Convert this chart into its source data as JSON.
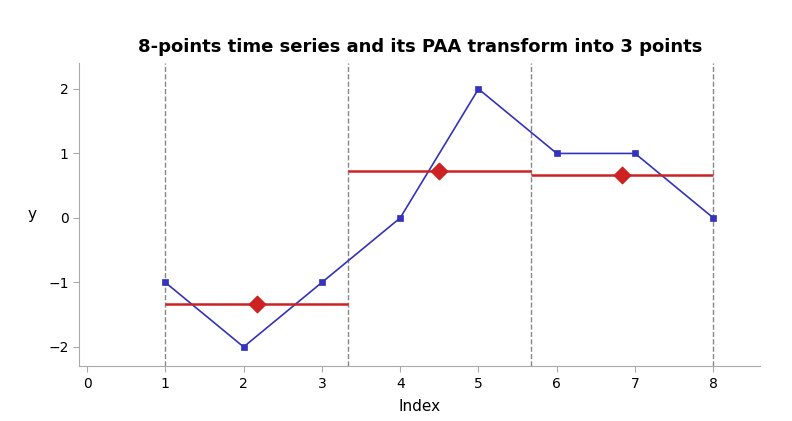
{
  "title": "8-points time series and its PAA transform into 3 points",
  "xlabel": "Index",
  "ylabel": "y",
  "ts_x": [
    1,
    2,
    3,
    4,
    5,
    6,
    7,
    8
  ],
  "ts_y": [
    -1,
    -2,
    -1,
    0,
    2,
    1,
    1,
    0
  ],
  "ts_color": "#3333BB",
  "ts_linewidth": 1.2,
  "ts_markersize": 4.5,
  "paa_segments": [
    {
      "x_start": 1,
      "x_end": 3.333,
      "y_mean": -1.3333,
      "diamond_x": 2.1667,
      "diamond_y": -1.3333
    },
    {
      "x_start": 3.333,
      "x_end": 5.667,
      "y_mean": 0.7333,
      "diamond_x": 4.5,
      "diamond_y": 0.7333
    },
    {
      "x_start": 5.667,
      "x_end": 8.0,
      "y_mean": 0.6667,
      "diamond_x": 6.8333,
      "diamond_y": 0.6667
    }
  ],
  "paa_color": "#CC2222",
  "paa_linewidth": 1.8,
  "vline_x": [
    1,
    3.333,
    5.667,
    8
  ],
  "vline_color": "#888888",
  "vline_style": "--",
  "vline_linewidth": 1.0,
  "xlim": [
    -0.1,
    8.6
  ],
  "ylim": [
    -2.3,
    2.4
  ],
  "xticks": [
    0,
    1,
    2,
    3,
    4,
    5,
    6,
    7,
    8
  ],
  "yticks": [
    -2,
    -1,
    0,
    1,
    2
  ],
  "title_fontsize": 13,
  "label_fontsize": 11,
  "tick_fontsize": 10,
  "background_color": "#FFFFFF",
  "plot_bg_color": "#FFFFFF",
  "diamond_size": 70,
  "diamond_marker": "D",
  "spine_color": "#AAAAAA"
}
